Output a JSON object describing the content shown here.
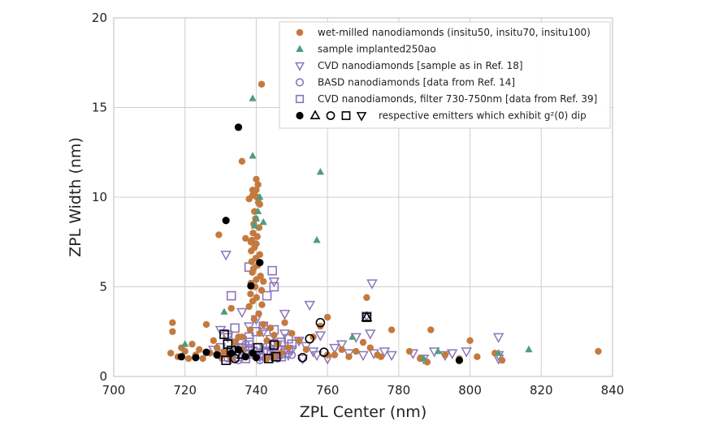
{
  "chart_data": {
    "type": "scatter",
    "xlabel": "ZPL Center (nm)",
    "ylabel": "ZPL Width (nm)",
    "xlim": [
      700,
      840
    ],
    "ylim": [
      0,
      20
    ],
    "xticks": [
      "700",
      "720",
      "740",
      "760",
      "780",
      "800",
      "820",
      "840"
    ],
    "yticks": [
      "0",
      "5",
      "10",
      "15",
      "20"
    ],
    "grid": true,
    "legend_position": "top-right",
    "legend": [
      {
        "marker": "circle-filled",
        "color": "#c47a3e",
        "label": "wet-milled  nanodiamonds (insitu50, insitu70, insitu100)"
      },
      {
        "marker": "triangle-filled",
        "color": "#4f9d7c",
        "label": "sample implanted250ao"
      },
      {
        "marker": "triangle-down-open",
        "color": "#8a76b8",
        "label": "CVD  nanodiamonds [sample as in Ref. 18]"
      },
      {
        "marker": "circle-open",
        "color": "#8a76b8",
        "label": "BASD  nanodiamonds [data from Ref. 14]"
      },
      {
        "marker": "square-open",
        "color": "#8a76b8",
        "label": "CVD  nanodiamonds, filter 730-750nm [data from Ref. 39]"
      },
      {
        "marker": "black-set",
        "color": "#000000",
        "label": "respective emitters which exhibit g²(0) dip"
      }
    ],
    "series": [
      {
        "name": "wet-milled  nanodiamonds (insitu50, insitu70, insitu100)",
        "marker": "circle-filled",
        "color": "#c47a3e",
        "points": [
          [
            716.5,
            3.0
          ],
          [
            716.5,
            2.5
          ],
          [
            716,
            1.3
          ],
          [
            718,
            1.1
          ],
          [
            719,
            1.6
          ],
          [
            720,
            1.4
          ],
          [
            721,
            1.0
          ],
          [
            722,
            1.8
          ],
          [
            723,
            1.2
          ],
          [
            724,
            1.5
          ],
          [
            725,
            1.0
          ],
          [
            726,
            2.9
          ],
          [
            727,
            1.3
          ],
          [
            728,
            2.0
          ],
          [
            729,
            1.6
          ],
          [
            730,
            1.1
          ],
          [
            731,
            1.4
          ],
          [
            732,
            1.2
          ],
          [
            733,
            3.8
          ],
          [
            734,
            1.9
          ],
          [
            729.5,
            7.9
          ],
          [
            736,
            12.0
          ],
          [
            737,
            7.7
          ],
          [
            738,
            9.9
          ],
          [
            738.5,
            7.5
          ],
          [
            739,
            10.4
          ],
          [
            739.5,
            9.2
          ],
          [
            740,
            11.0
          ],
          [
            740.5,
            10.7
          ],
          [
            741,
            9.6
          ],
          [
            741.5,
            16.3
          ],
          [
            739,
            10.1
          ],
          [
            739.5,
            10.3
          ],
          [
            740,
            10.4
          ],
          [
            740.2,
            10.0
          ],
          [
            740.6,
            9.7
          ],
          [
            739.8,
            8.8
          ],
          [
            739.3,
            8.5
          ],
          [
            740.8,
            8.3
          ],
          [
            739.1,
            8.0
          ],
          [
            740.3,
            7.8
          ],
          [
            738.8,
            7.6
          ],
          [
            740,
            7.4
          ],
          [
            739.5,
            7.2
          ],
          [
            738.6,
            7.0
          ],
          [
            741,
            6.8
          ],
          [
            739.9,
            6.6
          ],
          [
            738.7,
            6.4
          ],
          [
            740.4,
            6.2
          ],
          [
            739.2,
            6.0
          ],
          [
            738.9,
            5.8
          ],
          [
            741.2,
            5.6
          ],
          [
            740,
            5.4
          ],
          [
            742,
            5.3
          ],
          [
            738.5,
            5.2
          ],
          [
            739.7,
            5.0
          ],
          [
            741.5,
            4.8
          ],
          [
            738.4,
            4.6
          ],
          [
            740.1,
            4.4
          ],
          [
            739,
            4.2
          ],
          [
            741.6,
            4.0
          ],
          [
            738,
            3.9
          ],
          [
            740.7,
            3.5
          ],
          [
            739.4,
            3.2
          ],
          [
            742,
            2.9
          ],
          [
            738.3,
            2.6
          ],
          [
            741,
            2.4
          ],
          [
            736,
            2.2
          ],
          [
            743,
            2.0
          ],
          [
            744,
            2.7
          ],
          [
            745,
            2.3
          ],
          [
            746,
            1.8
          ],
          [
            748,
            3.0
          ],
          [
            750,
            2.4
          ],
          [
            752,
            2.0
          ],
          [
            754,
            1.5
          ],
          [
            756,
            2.2
          ],
          [
            758,
            2.8
          ],
          [
            760,
            3.3
          ],
          [
            762,
            1.2
          ],
          [
            764,
            1.5
          ],
          [
            766,
            1.1
          ],
          [
            768,
            1.4
          ],
          [
            770,
            1.9
          ],
          [
            771,
            4.4
          ],
          [
            772,
            1.6
          ],
          [
            774,
            1.2
          ],
          [
            775,
            1.1
          ],
          [
            778,
            2.6
          ],
          [
            783,
            1.4
          ],
          [
            786,
            1.0
          ],
          [
            788,
            0.8
          ],
          [
            789,
            2.6
          ],
          [
            793,
            1.2
          ],
          [
            797,
            1.0
          ],
          [
            800,
            2.0
          ],
          [
            802,
            1.1
          ],
          [
            807,
            1.3
          ],
          [
            809,
            0.9
          ],
          [
            836,
            1.4
          ],
          [
            760,
            1.2
          ],
          [
            735,
            2.2
          ],
          [
            743,
            1.0
          ],
          [
            747,
            1.3
          ],
          [
            733,
            1.0
          ],
          [
            736,
            1.5
          ],
          [
            745,
            1.1
          ],
          [
            749,
            1.6
          ]
        ]
      },
      {
        "name": "sample implanted250ao",
        "marker": "triangle-filled",
        "color": "#4f9d7c",
        "points": [
          [
            739,
            15.5
          ],
          [
            739,
            12.3
          ],
          [
            741,
            10.0
          ],
          [
            742,
            8.6
          ],
          [
            758,
            11.4
          ],
          [
            757,
            7.6
          ],
          [
            740,
            8.8
          ],
          [
            739.5,
            8.4
          ],
          [
            740.5,
            9.2
          ],
          [
            731,
            3.6
          ],
          [
            720,
            1.8
          ],
          [
            767,
            2.2
          ],
          [
            787,
            1.0
          ],
          [
            791,
            1.4
          ],
          [
            808,
            1.3
          ],
          [
            816.5,
            1.5
          ]
        ]
      },
      {
        "name": "CVD  nanodiamonds [sample as in Ref. 18]",
        "marker": "triangle-down-open",
        "color": "#8a76b8",
        "points": [
          [
            731.5,
            6.8
          ],
          [
            745,
            5.3
          ],
          [
            748,
            3.5
          ],
          [
            755,
            4.0
          ],
          [
            772.5,
            5.2
          ],
          [
            771,
            3.4
          ],
          [
            772,
            2.4
          ],
          [
            768,
            2.2
          ],
          [
            773,
            1.3
          ],
          [
            776,
            1.4
          ],
          [
            778,
            1.2
          ],
          [
            784,
            1.3
          ],
          [
            787,
            1.0
          ],
          [
            790,
            1.4
          ],
          [
            793,
            1.2
          ],
          [
            795,
            1.3
          ],
          [
            799,
            1.4
          ],
          [
            808,
            2.2
          ],
          [
            808,
            1.2
          ],
          [
            808,
            1.0
          ],
          [
            730,
            2.6
          ],
          [
            732,
            2.2
          ],
          [
            734,
            1.9
          ],
          [
            736,
            3.6
          ],
          [
            738,
            2.8
          ],
          [
            740,
            3.2
          ],
          [
            742,
            2.5
          ],
          [
            744,
            2.1
          ],
          [
            746,
            1.8
          ],
          [
            748,
            2.4
          ],
          [
            750,
            1.5
          ],
          [
            752,
            2.0
          ],
          [
            754,
            1.7
          ],
          [
            756,
            1.4
          ],
          [
            758,
            2.3
          ],
          [
            760,
            1.0
          ],
          [
            762,
            1.6
          ],
          [
            764,
            1.8
          ],
          [
            766,
            1.3
          ],
          [
            770,
            1.2
          ],
          [
            728,
            1.5
          ],
          [
            733,
            1.0
          ],
          [
            737,
            1.3
          ],
          [
            741,
            1.1
          ],
          [
            745,
            1.5
          ],
          [
            749,
            1.2
          ],
          [
            753,
            1.0
          ],
          [
            757,
            1.2
          ]
        ]
      },
      {
        "name": "BASD  nanodiamonds [data from Ref. 14]",
        "marker": "circle-open",
        "color": "#8a76b8",
        "points": [
          [
            730,
            1.3
          ],
          [
            732,
            1.0
          ],
          [
            734,
            1.5
          ],
          [
            736,
            1.2
          ],
          [
            738,
            1.6
          ],
          [
            740,
            1.4
          ],
          [
            742,
            1.1
          ],
          [
            744,
            1.3
          ],
          [
            746,
            1.0
          ],
          [
            748,
            1.5
          ],
          [
            735,
            0.9
          ],
          [
            739,
            1.2
          ],
          [
            743,
            1.7
          ],
          [
            747,
            1.2
          ],
          [
            741,
            0.9
          ],
          [
            737,
            1.8
          ],
          [
            745,
            1.9
          ],
          [
            750,
            1.2
          ]
        ]
      },
      {
        "name": "CVD  nanodiamonds, filter 730-750nm [data from Ref. 39]",
        "marker": "square-open",
        "color": "#8a76b8",
        "points": [
          [
            738,
            6.1
          ],
          [
            744.5,
            5.9
          ],
          [
            745,
            5.0
          ],
          [
            743,
            4.5
          ],
          [
            733,
            4.5
          ],
          [
            742,
            2.8
          ],
          [
            740,
            2.5
          ],
          [
            738,
            2.2
          ],
          [
            736,
            2.0
          ],
          [
            734,
            2.7
          ],
          [
            732,
            2.3
          ],
          [
            745,
            2.6
          ],
          [
            747,
            1.9
          ],
          [
            749,
            2.1
          ],
          [
            730,
            1.6
          ],
          [
            732,
            1.8
          ],
          [
            734,
            1.4
          ],
          [
            736,
            1.6
          ],
          [
            738,
            1.9
          ],
          [
            740,
            1.6
          ],
          [
            742,
            1.3
          ],
          [
            744,
            1.8
          ],
          [
            746,
            1.5
          ],
          [
            748,
            1.3
          ],
          [
            731,
            1.1
          ],
          [
            733,
            1.3
          ],
          [
            735,
            1.1
          ],
          [
            737,
            1.0
          ],
          [
            739,
            1.4
          ],
          [
            741,
            1.2
          ],
          [
            743,
            1.4
          ],
          [
            745,
            1.2
          ],
          [
            747,
            1.1
          ],
          [
            749,
            1.5
          ],
          [
            750,
            1.8
          ]
        ]
      },
      {
        "name": "respective emitters which exhibit g²(0) dip",
        "marker": "mixed-black",
        "color": "#000000",
        "points": [
          {
            "x": 735,
            "y": 13.9,
            "m": "circle-filled"
          },
          {
            "x": 731.5,
            "y": 8.7,
            "m": "circle-filled"
          },
          {
            "x": 741,
            "y": 6.35,
            "m": "circle-filled"
          },
          {
            "x": 738.5,
            "y": 5.05,
            "m": "circle-filled"
          },
          {
            "x": 719,
            "y": 1.1,
            "m": "circle-filled"
          },
          {
            "x": 723,
            "y": 1.05,
            "m": "circle-filled"
          },
          {
            "x": 726,
            "y": 1.35,
            "m": "circle-filled"
          },
          {
            "x": 729,
            "y": 1.2,
            "m": "circle-filled"
          },
          {
            "x": 733,
            "y": 1.3,
            "m": "circle-filled"
          },
          {
            "x": 735,
            "y": 1.5,
            "m": "circle-filled"
          },
          {
            "x": 737,
            "y": 1.1,
            "m": "circle-filled"
          },
          {
            "x": 739,
            "y": 1.3,
            "m": "circle-filled"
          },
          {
            "x": 740,
            "y": 1.05,
            "m": "circle-filled"
          },
          {
            "x": 797,
            "y": 0.9,
            "m": "circle-filled"
          },
          {
            "x": 731,
            "y": 2.35,
            "m": "square-open"
          },
          {
            "x": 732,
            "y": 1.8,
            "m": "square-open"
          },
          {
            "x": 733,
            "y": 1.45,
            "m": "square-open"
          },
          {
            "x": 731.5,
            "y": 0.9,
            "m": "square-open"
          },
          {
            "x": 740.5,
            "y": 1.6,
            "m": "square-open"
          },
          {
            "x": 743.5,
            "y": 1.0,
            "m": "square-open"
          },
          {
            "x": 745.5,
            "y": 1.1,
            "m": "square-open"
          },
          {
            "x": 745,
            "y": 1.75,
            "m": "square-open"
          },
          {
            "x": 771,
            "y": 3.3,
            "m": "square-open"
          },
          {
            "x": 771,
            "y": 3.3,
            "m": "triangle-up-open"
          },
          {
            "x": 736,
            "y": 1.2,
            "m": "triangle-up-open"
          },
          {
            "x": 758,
            "y": 3.0,
            "m": "circle-open"
          },
          {
            "x": 755,
            "y": 2.1,
            "m": "circle-open"
          },
          {
            "x": 759,
            "y": 1.35,
            "m": "circle-open"
          },
          {
            "x": 753,
            "y": 1.05,
            "m": "circle-open"
          },
          {
            "x": 734,
            "y": 1.0,
            "m": "circle-open"
          }
        ]
      }
    ]
  }
}
